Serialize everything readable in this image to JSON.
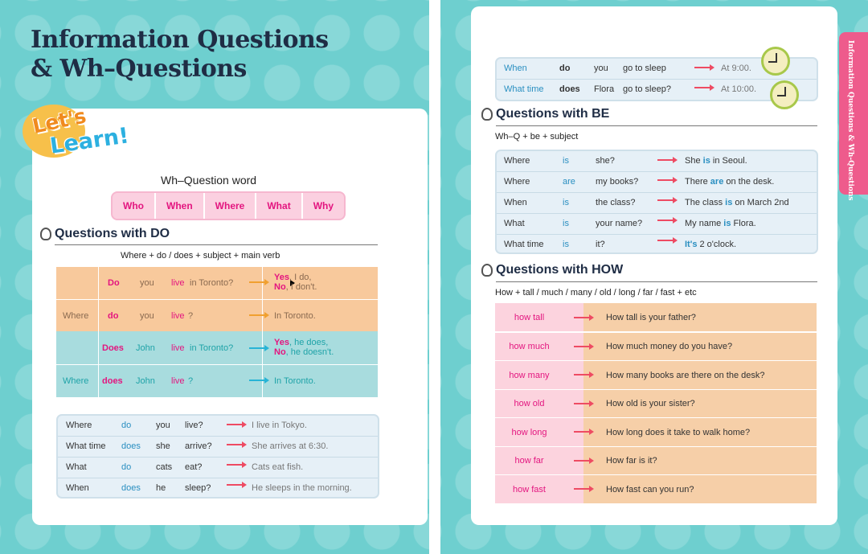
{
  "left": {
    "title_line1": "Information Questions",
    "title_line2": "& Wh–Questions",
    "badge_line1": "Let's",
    "badge_line2": "Learn!",
    "wh_word_label": "Wh–Question word",
    "wh_words": [
      "Who",
      "When",
      "Where",
      "What",
      "Why"
    ],
    "do_section": {
      "heading": "Questions with DO",
      "formula": "Where + do / does + subject + main verb",
      "rows": [
        {
          "wh": "",
          "aux": "Do",
          "subj": "you",
          "verb": "live",
          "rest": " in Toronto?",
          "ans1_bold": "Yes",
          "ans1": ", I do,",
          "ans2_bold": "No",
          "ans2": ", I don't."
        },
        {
          "wh": "Where",
          "aux": "do",
          "subj": "you",
          "verb": "live",
          "rest": "?",
          "ans1_bold": "",
          "ans1": "In Toronto.",
          "ans2_bold": "",
          "ans2": ""
        },
        {
          "wh": "",
          "aux": "Does",
          "subj": "John",
          "verb": "live",
          "rest": " in Toronto?",
          "ans1_bold": "Yes",
          "ans1": ", he does,",
          "ans2_bold": "No",
          "ans2": ", he doesn't."
        },
        {
          "wh": "Where",
          "aux": "does",
          "subj": "John",
          "verb": "live",
          "rest": "?",
          "ans1_bold": "",
          "ans1": "In Toronto.",
          "ans2_bold": "",
          "ans2": ""
        }
      ]
    },
    "examples": [
      {
        "wh": "Where",
        "aux": "do",
        "subj": "you",
        "verb": "live?",
        "ans": "I live in Tokyo."
      },
      {
        "wh": "What time",
        "aux": "does",
        "subj": "she",
        "verb": "arrive?",
        "ans": "She arrives at 6:30."
      },
      {
        "wh": "What",
        "aux": "do",
        "subj": "cats",
        "verb": "eat?",
        "ans": "Cats eat fish."
      },
      {
        "wh": "When",
        "aux": "does",
        "subj": "he",
        "verb": "sleep?",
        "ans": "He sleeps in the morning."
      }
    ]
  },
  "right": {
    "side_tab": "Information Questions & Wh-Questions",
    "top_rows": [
      {
        "wh": "When",
        "aux": "do",
        "subj": "you",
        "verb": "go to sleep",
        "ans": "At 9:00."
      },
      {
        "wh": "What time",
        "aux": "does",
        "subj": "Flora",
        "verb": "go to sleep?",
        "ans": "At 10:00."
      }
    ],
    "be_section": {
      "heading": "Questions with BE",
      "formula": "Wh–Q + be + subject",
      "rows": [
        {
          "wh": "Where",
          "be": "is",
          "subj": "she?",
          "a1": "She ",
          "a_be": "is",
          "a2": " in Seoul."
        },
        {
          "wh": "Where",
          "be": "are",
          "subj": "my books?",
          "a1": "There ",
          "a_be": "are",
          "a2": " on the desk."
        },
        {
          "wh": "When",
          "be": "is",
          "subj": "the class?",
          "a1": "The class ",
          "a_be": "is",
          "a2": " on March 2nd"
        },
        {
          "wh": "What",
          "be": "is",
          "subj": "your name?",
          "a1": "My name ",
          "a_be": "is",
          "a2": " Flora."
        },
        {
          "wh": "What time",
          "be": "is",
          "subj": "it?",
          "a1": "",
          "a_be": "It's",
          "a2": " 2 o'clock."
        }
      ]
    },
    "how_section": {
      "heading": "Questions with HOW",
      "formula": "How + tall / much / many / old / long / far / fast + etc",
      "rows": [
        {
          "phrase": "how tall",
          "question": "How tall is your father?"
        },
        {
          "phrase": "how much",
          "question": "How much money do you have?"
        },
        {
          "phrase": "how many",
          "question": "How many books are there on the desk?"
        },
        {
          "phrase": "how old",
          "question": "How old is your sister?"
        },
        {
          "phrase": "how long",
          "question": "How long does it take to walk home?"
        },
        {
          "phrase": "how far",
          "question": "How far is it?"
        },
        {
          "phrase": "how fast",
          "question": "How fast can you run?"
        }
      ]
    }
  },
  "colors": {
    "teal_bg": "#6ecfcf",
    "magenta": "#e3157f",
    "blue_text": "#2a8fc1",
    "teal_text": "#1fa3a8",
    "orange_arrow": "#f0a030",
    "red_arrow": "#ee4b63",
    "cyan_arrow": "#27b4d6",
    "pink_tab": "#ee5b8c"
  }
}
